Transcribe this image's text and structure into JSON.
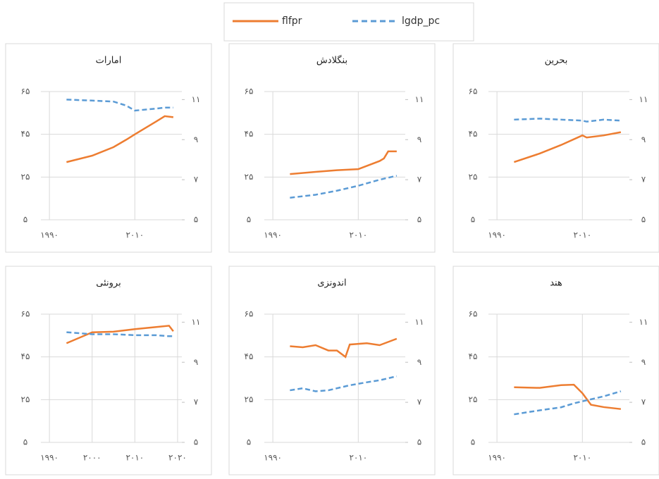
{
  "chart_data": [
    {
      "type": "line",
      "title": "امارات",
      "xlim": [
        1988,
        2021
      ],
      "ylim": [
        5,
        65
      ],
      "y2lim": [
        5,
        11.4
      ],
      "xticks": [
        {
          "value": 1990,
          "label": "۱۹۹۰"
        },
        {
          "value": 2010,
          "label": "۲۰۱۰"
        }
      ],
      "yticks": [
        {
          "value": 5,
          "label": "۵"
        },
        {
          "value": 25,
          "label": "۲۵"
        },
        {
          "value": 45,
          "label": "۴۵"
        },
        {
          "value": 65,
          "label": "۶۵"
        }
      ],
      "y2ticks": [
        {
          "value": 5,
          "label": "۵"
        },
        {
          "value": 7,
          "label": "۷"
        },
        {
          "value": 9,
          "label": "۹"
        },
        {
          "value": 11,
          "label": "۱۱"
        }
      ],
      "grid": true,
      "x": [
        1994,
        2000,
        2005,
        2008,
        2010,
        2015,
        2017,
        2019
      ],
      "series": [
        {
          "name": "flfpr",
          "color": "#ed7d31",
          "dash": false,
          "values": [
            32,
            35,
            39,
            42.5,
            45,
            51,
            53.5,
            53
          ]
        },
        {
          "name": "lgdp_pc",
          "color": "#5b9bd5",
          "dash": true,
          "axis": "y2",
          "values": [
            11.0,
            10.95,
            10.9,
            10.7,
            10.45,
            10.55,
            10.6,
            10.6
          ]
        }
      ]
    },
    {
      "type": "line",
      "title": "بنگلادش",
      "xlim": [
        1988,
        2021
      ],
      "ylim": [
        5,
        65
      ],
      "y2lim": [
        5,
        11.4
      ],
      "xticks": [
        {
          "value": 1990,
          "label": "۱۹۹۰"
        },
        {
          "value": 2010,
          "label": "۲۰۱۰"
        }
      ],
      "yticks": [
        {
          "value": 5,
          "label": "۵"
        },
        {
          "value": 25,
          "label": "۲۵"
        },
        {
          "value": 45,
          "label": "۴۵"
        },
        {
          "value": 65,
          "label": "۶۵"
        }
      ],
      "y2ticks": [
        {
          "value": 5,
          "label": "۵"
        },
        {
          "value": 7,
          "label": "۷"
        },
        {
          "value": 9,
          "label": "۹"
        },
        {
          "value": 11,
          "label": "۱۱"
        }
      ],
      "grid": true,
      "x": [
        1994,
        2000,
        2005,
        2010,
        2015,
        2016,
        2017,
        2019
      ],
      "series": [
        {
          "name": "flfpr",
          "color": "#ed7d31",
          "dash": false,
          "values": [
            26.4,
            27.4,
            28.2,
            28.7,
            32.5,
            33.7,
            37,
            37
          ]
        },
        {
          "name": "lgdp_pc",
          "color": "#5b9bd5",
          "dash": true,
          "axis": "y2",
          "values": [
            6.1,
            6.25,
            6.45,
            6.7,
            7.0,
            7.05,
            7.1,
            7.2
          ]
        }
      ]
    },
    {
      "type": "line",
      "title": "بحرین",
      "xlim": [
        1988,
        2021
      ],
      "ylim": [
        5,
        65
      ],
      "y2lim": [
        5,
        11.4
      ],
      "xticks": [
        {
          "value": 1990,
          "label": "۱۹۹۰"
        },
        {
          "value": 2010,
          "label": "۲۰۱۰"
        }
      ],
      "yticks": [
        {
          "value": 5,
          "label": "۵"
        },
        {
          "value": 25,
          "label": "۲۵"
        },
        {
          "value": 45,
          "label": "۴۵"
        },
        {
          "value": 65,
          "label": "۶۵"
        }
      ],
      "y2ticks": [
        {
          "value": 5,
          "label": "۵"
        },
        {
          "value": 7,
          "label": "۷"
        },
        {
          "value": 9,
          "label": "۹"
        },
        {
          "value": 11,
          "label": "۱۱"
        }
      ],
      "grid": true,
      "x": [
        1994,
        2000,
        2005,
        2010,
        2011,
        2015,
        2019
      ],
      "series": [
        {
          "name": "flfpr",
          "color": "#ed7d31",
          "dash": false,
          "values": [
            32,
            36,
            40,
            44.5,
            43.5,
            44.5,
            46
          ]
        },
        {
          "name": "lgdp_pc",
          "color": "#5b9bd5",
          "dash": true,
          "axis": "y2",
          "values": [
            10.0,
            10.05,
            10.0,
            9.95,
            9.9,
            10.0,
            9.95
          ]
        }
      ]
    },
    {
      "type": "line",
      "title": "برونئی",
      "xlim": [
        1988,
        2021
      ],
      "ylim": [
        5,
        65
      ],
      "y2lim": [
        5,
        11.4
      ],
      "xticks": [
        {
          "value": 1990,
          "label": "۱۹۹۰"
        },
        {
          "value": 2000,
          "label": "۲۰۰۰"
        },
        {
          "value": 2010,
          "label": "۲۰۱۰"
        },
        {
          "value": 2020,
          "label": "۲۰۲۰"
        }
      ],
      "yticks": [
        {
          "value": 5,
          "label": "۵"
        },
        {
          "value": 25,
          "label": "۲۵"
        },
        {
          "value": 45,
          "label": "۴۵"
        },
        {
          "value": 65,
          "label": "۶۵"
        }
      ],
      "y2ticks": [
        {
          "value": 5,
          "label": "۵"
        },
        {
          "value": 7,
          "label": "۷"
        },
        {
          "value": 9,
          "label": "۹"
        },
        {
          "value": 11,
          "label": "۱۱"
        }
      ],
      "grid": true,
      "x": [
        1994,
        2000,
        2005,
        2010,
        2015,
        2018,
        2019
      ],
      "series": [
        {
          "name": "flfpr",
          "color": "#ed7d31",
          "dash": false,
          "values": [
            51.4,
            56.5,
            56.8,
            58,
            59,
            59.6,
            57
          ]
        },
        {
          "name": "lgdp_pc",
          "color": "#5b9bd5",
          "dash": true,
          "axis": "y2",
          "values": [
            10.5,
            10.4,
            10.4,
            10.35,
            10.35,
            10.3,
            10.3
          ]
        }
      ]
    },
    {
      "type": "line",
      "title": "اندونزی",
      "xlim": [
        1988,
        2021
      ],
      "ylim": [
        5,
        65
      ],
      "y2lim": [
        5,
        11.4
      ],
      "xticks": [
        {
          "value": 1990,
          "label": "۱۹۹۰"
        },
        {
          "value": 2010,
          "label": "۲۰۱۰"
        }
      ],
      "yticks": [
        {
          "value": 5,
          "label": "۵"
        },
        {
          "value": 25,
          "label": "۲۵"
        },
        {
          "value": 45,
          "label": "۴۵"
        },
        {
          "value": 65,
          "label": "۶۵"
        }
      ],
      "y2ticks": [
        {
          "value": 5,
          "label": "۵"
        },
        {
          "value": 7,
          "label": "۷"
        },
        {
          "value": 9,
          "label": "۹"
        },
        {
          "value": 11,
          "label": "۱۱"
        }
      ],
      "grid": true,
      "x": [
        1994,
        1997,
        2000,
        2003,
        2005,
        2007,
        2008,
        2012,
        2015,
        2019
      ],
      "series": [
        {
          "name": "flfpr",
          "color": "#ed7d31",
          "dash": false,
          "values": [
            50,
            49.5,
            50.5,
            48,
            48,
            45,
            50.8,
            51.4,
            50.5,
            53.5
          ]
        },
        {
          "name": "lgdp_pc",
          "color": "#5b9bd5",
          "dash": true,
          "axis": "y2",
          "values": [
            7.6,
            7.7,
            7.55,
            7.6,
            7.7,
            7.8,
            7.85,
            8.0,
            8.1,
            8.3
          ]
        }
      ]
    },
    {
      "type": "line",
      "title": "هند",
      "xlim": [
        1988,
        2021
      ],
      "ylim": [
        5,
        65
      ],
      "y2lim": [
        5,
        11.4
      ],
      "xticks": [
        {
          "value": 1990,
          "label": "۱۹۹۰"
        },
        {
          "value": 2010,
          "label": "۲۰۱۰"
        }
      ],
      "yticks": [
        {
          "value": 5,
          "label": "۵"
        },
        {
          "value": 25,
          "label": "۲۵"
        },
        {
          "value": 45,
          "label": "۴۵"
        },
        {
          "value": 65,
          "label": "۶۵"
        }
      ],
      "y2ticks": [
        {
          "value": 5,
          "label": "۵"
        },
        {
          "value": 7,
          "label": "۷"
        },
        {
          "value": 9,
          "label": "۹"
        },
        {
          "value": 11,
          "label": "۱۱"
        }
      ],
      "grid": true,
      "x": [
        1994,
        2000,
        2005,
        2008,
        2010,
        2012,
        2015,
        2019
      ],
      "series": [
        {
          "name": "flfpr",
          "color": "#ed7d31",
          "dash": false,
          "values": [
            30.8,
            30.5,
            31.8,
            32,
            28,
            22.6,
            21.5,
            20.6
          ]
        },
        {
          "name": "lgdp_pc",
          "color": "#5b9bd5",
          "dash": true,
          "axis": "y2",
          "values": [
            6.4,
            6.6,
            6.75,
            6.95,
            7.05,
            7.15,
            7.3,
            7.55
          ]
        }
      ]
    }
  ]
}
